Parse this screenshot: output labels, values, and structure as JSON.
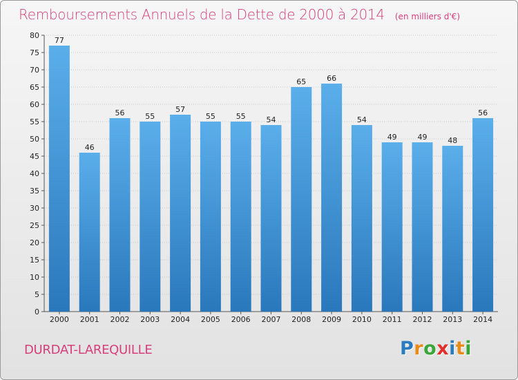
{
  "title": "Remboursements Annuels de la Dette de 2000 à 2014",
  "subtitle": "(en milliers d'€)",
  "commune": "DURDAT-LAREQUILLE",
  "logo": {
    "letters": [
      "P",
      "r",
      "o",
      "x",
      "i",
      "t",
      "i"
    ],
    "colors": [
      "#2a7bc0",
      "#e88b1a",
      "#3aa63a",
      "#e0302e",
      "#2a7bc0",
      "#e88b1a",
      "#3aa63a"
    ]
  },
  "colors": {
    "title": "#d63f7a",
    "bar_top": "#5aaeea",
    "bar_bottom": "#2a78bc",
    "grid": "#c8c8c8"
  },
  "chart_data": {
    "type": "bar",
    "title": "Remboursements Annuels de la Dette de 2000 à 2014",
    "subtitle": "(en milliers d'€)",
    "categories": [
      "2000",
      "2001",
      "2002",
      "2003",
      "2004",
      "2005",
      "2006",
      "2007",
      "2008",
      "2009",
      "2010",
      "2011",
      "2012",
      "2013",
      "2014"
    ],
    "values": [
      77,
      46,
      56,
      55,
      57,
      55,
      55,
      54,
      65,
      66,
      54,
      49,
      49,
      48,
      56
    ],
    "ylim": [
      0,
      80
    ],
    "ytick_step": 5,
    "grid": true
  }
}
